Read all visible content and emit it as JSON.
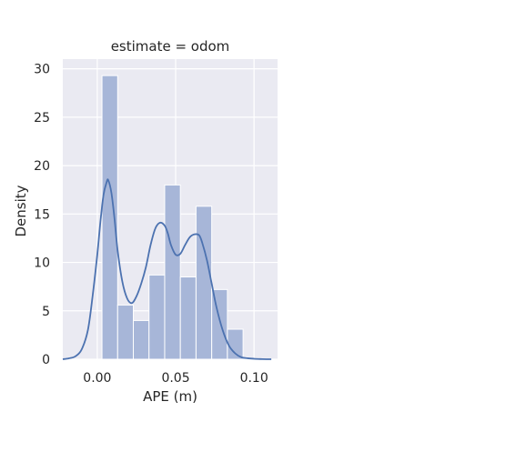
{
  "chart_data": {
    "type": "bar",
    "title": "estimate = odom",
    "xlabel": "APE (m)",
    "ylabel": "Density",
    "xlim": [
      -0.022,
      0.115
    ],
    "ylim": [
      0,
      31
    ],
    "xticks": [
      0.0,
      0.05,
      0.1
    ],
    "xtick_labels": [
      "0.00",
      "0.05",
      "0.10"
    ],
    "yticks": [
      0,
      5,
      10,
      15,
      20,
      25,
      30
    ],
    "ytick_labels": [
      "0",
      "5",
      "10",
      "15",
      "20",
      "25",
      "30"
    ],
    "grid": true,
    "background_color": "#eaeaf2",
    "bar_color": "#a7b6d8",
    "line_color": "#4c72b0",
    "histogram": {
      "bin_edges": [
        0.003,
        0.013,
        0.023,
        0.033,
        0.043,
        0.053,
        0.063,
        0.073,
        0.083,
        0.093
      ],
      "values": [
        29.3,
        5.6,
        4.0,
        8.7,
        18.0,
        8.5,
        15.8,
        7.2,
        3.1
      ]
    },
    "kde": {
      "x": [
        -0.022,
        -0.018,
        -0.014,
        -0.01,
        -0.006,
        -0.003,
        0.0,
        0.002,
        0.004,
        0.006,
        0.007,
        0.009,
        0.011,
        0.013,
        0.016,
        0.019,
        0.022,
        0.025,
        0.028,
        0.031,
        0.034,
        0.037,
        0.04,
        0.043,
        0.045,
        0.047,
        0.05,
        0.053,
        0.056,
        0.059,
        0.062,
        0.065,
        0.067,
        0.07,
        0.073,
        0.076,
        0.08,
        0.084,
        0.088,
        0.092,
        0.096,
        0.1,
        0.104,
        0.108,
        0.111
      ],
      "y": [
        0.0,
        0.1,
        0.3,
        1.0,
        3.0,
        6.5,
        10.8,
        14.2,
        17.0,
        18.3,
        18.5,
        17.2,
        14.5,
        11.2,
        8.0,
        6.3,
        5.8,
        6.5,
        7.8,
        9.5,
        11.8,
        13.5,
        14.1,
        13.8,
        13.0,
        11.8,
        10.8,
        10.9,
        11.8,
        12.6,
        12.9,
        12.8,
        12.0,
        10.2,
        7.8,
        5.4,
        3.0,
        1.4,
        0.6,
        0.2,
        0.1,
        0.05,
        0.02,
        0.0,
        0.0
      ]
    }
  }
}
